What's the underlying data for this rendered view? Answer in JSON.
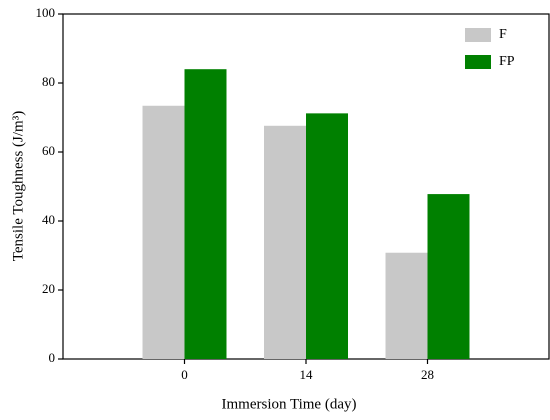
{
  "chart_data": {
    "type": "bar",
    "x_label": "Immersion Time (day)",
    "y_label": "Tensile Toughness (J/m³)",
    "categories": [
      "0",
      "14",
      "28"
    ],
    "series": [
      {
        "name": "F",
        "color": "#c8c8c8",
        "values": [
          73.4,
          67.6,
          30.8
        ]
      },
      {
        "name": "FP",
        "color": "#008000",
        "values": [
          84,
          71.2,
          47.8
        ]
      }
    ],
    "ylim": [
      0,
      100
    ],
    "yticks": [
      0,
      20,
      40,
      60,
      80,
      100
    ],
    "legend": "upper-right"
  }
}
